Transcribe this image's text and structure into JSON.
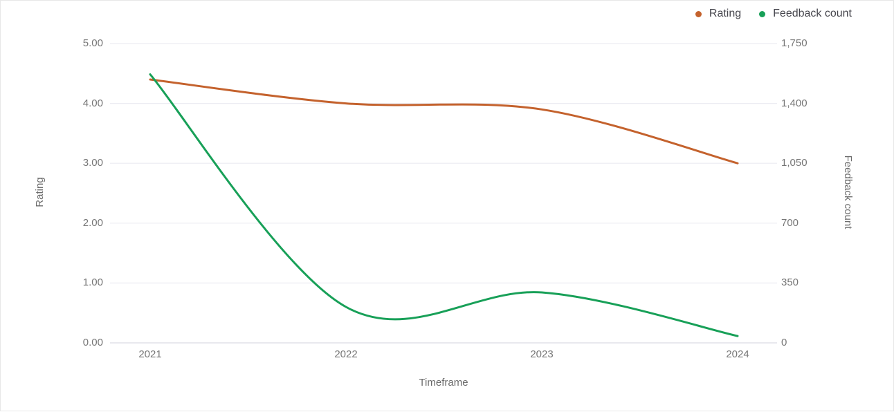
{
  "card": {
    "background": "#ffffff",
    "border_color": "#e7e7e7"
  },
  "legend": {
    "position": "top-right",
    "items": [
      {
        "label": "Rating",
        "color": "#c4622d"
      },
      {
        "label": "Feedback count",
        "color": "#18a058"
      }
    ]
  },
  "chart_data": {
    "type": "line",
    "title": "",
    "smooth": true,
    "grid": true,
    "legend_position": "top-right",
    "x_categories": [
      "2021",
      "2022",
      "2023",
      "2024"
    ],
    "xlabel": "Timeframe",
    "axes": {
      "left": {
        "label": "Rating",
        "min": 0,
        "max": 5,
        "ticks": [
          "5.00",
          "4.00",
          "3.00",
          "2.00",
          "1.00",
          "0.00"
        ]
      },
      "right": {
        "label": "Feedback count",
        "min": 0,
        "max": 1750,
        "ticks": [
          "1,750",
          "1,400",
          "1,050",
          "700",
          "350",
          "0"
        ]
      }
    },
    "series": [
      {
        "name": "Rating",
        "axis": "left",
        "color": "#c4622d",
        "values": [
          4.4,
          4.0,
          3.9,
          3.0
        ]
      },
      {
        "name": "Feedback count",
        "axis": "right",
        "color": "#18a058",
        "values": [
          1570,
          210,
          295,
          40
        ]
      }
    ],
    "style": {
      "gridline_color": "#ececf2",
      "baseline_color": "#e2e2e8",
      "tick_text_color": "#767676",
      "axis_title_color": "#6b6b6b",
      "legend_text_color": "#45454c",
      "line_width": 3
    }
  }
}
